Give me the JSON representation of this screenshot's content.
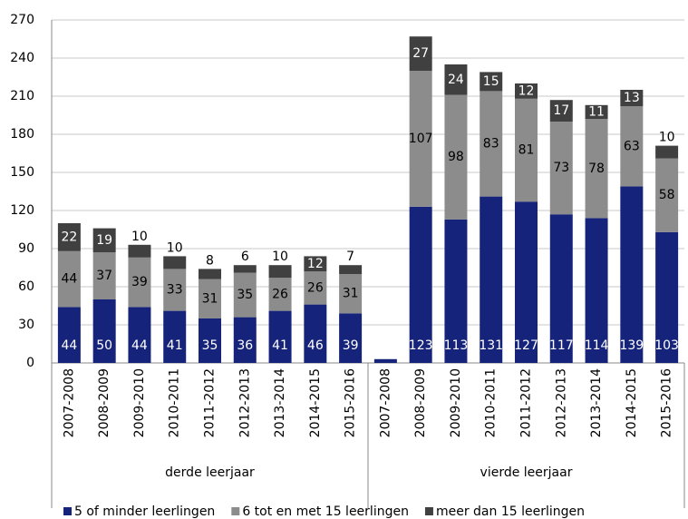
{
  "chart_data": {
    "type": "stacked_bar",
    "categories": [
      "2007-2008",
      "2008-2009",
      "2009-2010",
      "2010-2011",
      "2011-2012",
      "2012-2013",
      "2013-2014",
      "2014-2015",
      "2015-2016",
      "2007-2008",
      "2008-2009",
      "2009-2010",
      "2010-2011",
      "2011-2012",
      "2012-2013",
      "2013-2014",
      "2014-2015",
      "2015-2016"
    ],
    "groups": [
      "derde leerjaar",
      "vierde leerjaar"
    ],
    "series": [
      {
        "name": "5 of minder leerlingen",
        "color": "#16237a",
        "values": [
          44,
          50,
          44,
          41,
          35,
          36,
          41,
          46,
          39,
          3,
          123,
          113,
          131,
          127,
          117,
          114,
          139,
          103
        ]
      },
      {
        "name": "6 tot en met 15 leerlingen",
        "color": "#8c8c8c",
        "values": [
          44,
          37,
          39,
          33,
          31,
          35,
          26,
          26,
          31,
          0,
          107,
          98,
          83,
          81,
          73,
          78,
          63,
          58
        ]
      },
      {
        "name": "meer dan 15 leerlingen",
        "color": "#404040",
        "values": [
          22,
          19,
          10,
          10,
          8,
          6,
          10,
          12,
          7,
          0,
          27,
          24,
          15,
          12,
          17,
          11,
          13,
          10
        ]
      }
    ],
    "ylim": [
      0,
      270
    ],
    "yticks": [
      0,
      30,
      60,
      90,
      120,
      150,
      180,
      210,
      240,
      270
    ],
    "grid": true
  }
}
